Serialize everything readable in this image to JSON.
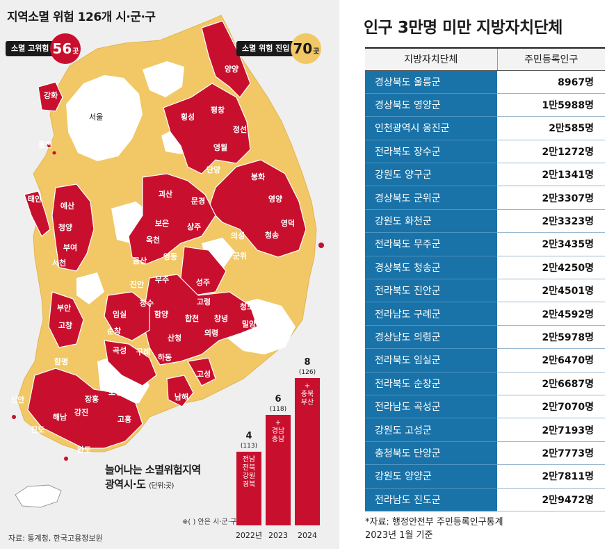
{
  "left": {
    "title": "지역소멸 위험 126개 시·군·구",
    "high_risk": {
      "label": "소멸 고위험",
      "count": "56",
      "unit": "곳"
    },
    "entry": {
      "label": "소멸 위험 진입",
      "count": "70",
      "unit": "곳"
    },
    "inset_title_1": "늘어나는 소멸위험지역",
    "inset_title_2": "광역시·도",
    "inset_unit": "(단위:곳)",
    "footnote": "※( ) 안은 시·군·구",
    "source": "자료: 통계청, 한국고용정보원",
    "seoul": "서울"
  },
  "colors": {
    "high_risk": "#c8102e",
    "entry": "#f1c865",
    "not_at_risk": "#ffffff",
    "table_blue": "#1a73a8"
  },
  "map_labels": [
    "양양",
    "강화",
    "옹진",
    "횡성",
    "평창",
    "정선",
    "영월",
    "단양",
    "봉화",
    "영양",
    "영덕",
    "태안",
    "예산",
    "청양",
    "부여",
    "서천",
    "괴산",
    "보은",
    "옥천",
    "상주",
    "의성",
    "청송",
    "문경",
    "영동",
    "금산",
    "군위",
    "진안",
    "무주",
    "성주",
    "고령",
    "부안",
    "고창",
    "임실",
    "장수",
    "함양",
    "합천",
    "창녕",
    "청도",
    "밀양",
    "순창",
    "곡성",
    "구례",
    "산청",
    "의령",
    "하동",
    "함평",
    "고성",
    "남해",
    "신안",
    "보성",
    "장흥",
    "강진",
    "해남",
    "고흥",
    "진도",
    "완도"
  ],
  "chart_data": {
    "type": "bar",
    "categories": [
      "2022년",
      "2023",
      "2024"
    ],
    "values": [
      4,
      6,
      8
    ],
    "sub_values": [
      "(113)",
      "(118)",
      "(126)"
    ],
    "bar_text": [
      [
        "전남",
        "전북",
        "강원",
        "경북"
      ],
      [
        "+",
        "경남",
        "충남"
      ],
      [
        "+",
        "충북",
        "부산"
      ]
    ],
    "ylim": [
      0,
      8
    ]
  },
  "right": {
    "title": "인구 3만명 미만 지방자치단체",
    "header": [
      "지방자치단체",
      "주민등록인구"
    ],
    "rows": [
      [
        "경상북도 울릉군",
        "8967명"
      ],
      [
        "경상북도 영양군",
        "1만5988명"
      ],
      [
        "인천광역시 옹진군",
        "2만585명"
      ],
      [
        "전라북도 장수군",
        "2만1272명"
      ],
      [
        "강원도 양구군",
        "2만1341명"
      ],
      [
        "경상북도 군위군",
        "2만3307명"
      ],
      [
        "강원도 화천군",
        "2만3323명"
      ],
      [
        "전라북도 무주군",
        "2만3435명"
      ],
      [
        "경상북도 청송군",
        "2만4250명"
      ],
      [
        "전라북도 진안군",
        "2만4501명"
      ],
      [
        "전라남도 구례군",
        "2만4592명"
      ],
      [
        "경상남도 의령군",
        "2만5978명"
      ],
      [
        "전라북도 임실군",
        "2만6470명"
      ],
      [
        "전라북도 순창군",
        "2만6687명"
      ],
      [
        "전라남도 곡성군",
        "2만7070명"
      ],
      [
        "강원도 고성군",
        "2만7193명"
      ],
      [
        "충청북도 단양군",
        "2만7773명"
      ],
      [
        "강원도 양양군",
        "2만7811명"
      ],
      [
        "전라남도 진도군",
        "2만9472명"
      ]
    ],
    "source_1": "*자료: 행정안전부 주민등록인구통계",
    "source_2": "2023년 1월 기준"
  }
}
